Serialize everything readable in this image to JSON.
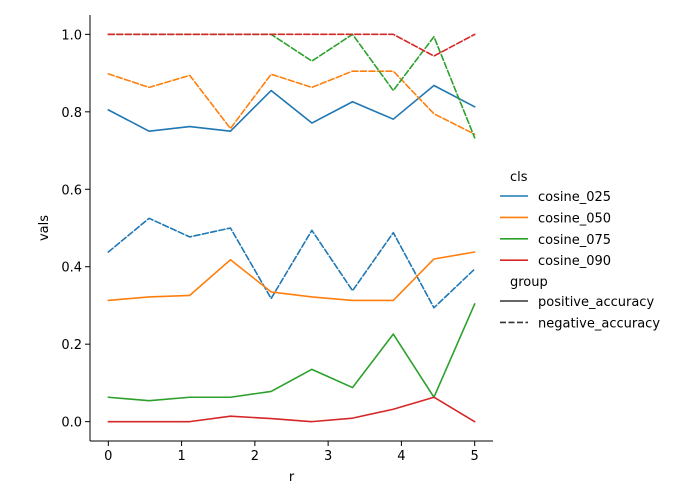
{
  "chart_data": {
    "type": "line",
    "xlabel": "r",
    "ylabel": "vals",
    "xlim": [
      -0.25,
      5.25
    ],
    "ylim": [
      -0.05,
      1.05
    ],
    "xticks": [
      0,
      1,
      2,
      3,
      4,
      5
    ],
    "yticks": [
      0.0,
      0.2,
      0.4,
      0.6,
      0.8,
      1.0
    ],
    "grid": false,
    "legend_position": "right",
    "x": [
      0,
      0.556,
      1.111,
      1.667,
      2.222,
      2.778,
      3.333,
      3.889,
      4.444,
      5.0
    ],
    "hue_title": "cls",
    "hue": [
      {
        "name": "cosine_025",
        "color": "#1f77b4"
      },
      {
        "name": "cosine_050",
        "color": "#ff7f0e"
      },
      {
        "name": "cosine_075",
        "color": "#2ca02c"
      },
      {
        "name": "cosine_090",
        "color": "#d62728"
      }
    ],
    "style_title": "group",
    "styles": [
      {
        "name": "positive_accuracy",
        "dash": "solid"
      },
      {
        "name": "negative_accuracy",
        "dash": "dashed"
      }
    ],
    "series": [
      {
        "cls": "cosine_025",
        "group": "positive_accuracy",
        "values": [
          0.805,
          0.75,
          0.762,
          0.75,
          0.855,
          0.771,
          0.826,
          0.781,
          0.868,
          0.813
        ]
      },
      {
        "cls": "cosine_025",
        "group": "negative_accuracy",
        "values": [
          0.438,
          0.525,
          0.477,
          0.5,
          0.318,
          0.494,
          0.338,
          0.488,
          0.294,
          0.394
        ]
      },
      {
        "cls": "cosine_050",
        "group": "positive_accuracy",
        "values": [
          0.313,
          0.322,
          0.326,
          0.418,
          0.335,
          0.322,
          0.313,
          0.313,
          0.42,
          0.438
        ]
      },
      {
        "cls": "cosine_050",
        "group": "negative_accuracy",
        "values": [
          0.898,
          0.863,
          0.894,
          0.757,
          0.897,
          0.863,
          0.905,
          0.905,
          0.795,
          0.742
        ]
      },
      {
        "cls": "cosine_075",
        "group": "positive_accuracy",
        "values": [
          0.063,
          0.054,
          0.063,
          0.063,
          0.078,
          0.135,
          0.088,
          0.226,
          0.063,
          0.304
        ]
      },
      {
        "cls": "cosine_075",
        "group": "negative_accuracy",
        "values": [
          1.0,
          1.0,
          1.0,
          1.0,
          1.0,
          0.931,
          1.0,
          0.855,
          0.994,
          0.733
        ]
      },
      {
        "cls": "cosine_090",
        "group": "positive_accuracy",
        "values": [
          0.0,
          0.0,
          0.0,
          0.014,
          0.008,
          0.0,
          0.009,
          0.032,
          0.063,
          0.0
        ]
      },
      {
        "cls": "cosine_090",
        "group": "negative_accuracy",
        "values": [
          1.0,
          1.0,
          1.0,
          1.0,
          1.0,
          1.0,
          1.0,
          1.0,
          0.944,
          1.0
        ]
      }
    ]
  }
}
